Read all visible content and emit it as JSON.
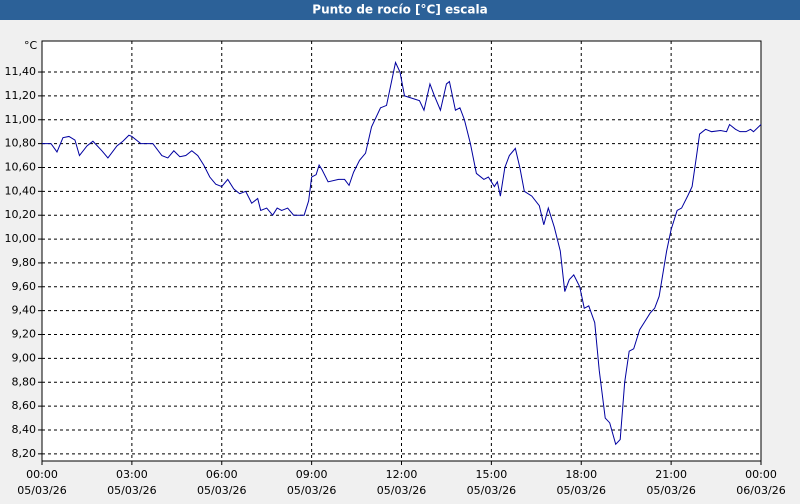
{
  "chart_data": {
    "type": "line",
    "title": "Punto de rocío [°C] escala",
    "y_unit": "°C",
    "xlim": [
      0,
      24
    ],
    "xticks": [
      {
        "value": 0,
        "label": "00:00"
      },
      {
        "value": 3,
        "label": "03:00"
      },
      {
        "value": 6,
        "label": "06:00"
      },
      {
        "value": 9,
        "label": "09:00"
      },
      {
        "value": 12,
        "label": "12:00"
      },
      {
        "value": 15,
        "label": "15:00"
      },
      {
        "value": 18,
        "label": "18:00"
      },
      {
        "value": 21,
        "label": "21:00"
      },
      {
        "value": 24,
        "label": "00:00"
      }
    ],
    "xtick_dates": [
      "05/03/26",
      "05/03/26",
      "05/03/26",
      "05/03/26",
      "05/03/26",
      "05/03/26",
      "05/03/26",
      "05/03/26",
      "06/03/26"
    ],
    "ylim": [
      8.14,
      11.66
    ],
    "yticks": [
      {
        "value": 8.2,
        "label": "8,20"
      },
      {
        "value": 8.4,
        "label": "8,40"
      },
      {
        "value": 8.6,
        "label": "8,60"
      },
      {
        "value": 8.8,
        "label": "8,80"
      },
      {
        "value": 9.0,
        "label": "9,00"
      },
      {
        "value": 9.2,
        "label": "9,20"
      },
      {
        "value": 9.4,
        "label": "9,40"
      },
      {
        "value": 9.6,
        "label": "9,60"
      },
      {
        "value": 9.8,
        "label": "9,80"
      },
      {
        "value": 10.0,
        "label": "10,00"
      },
      {
        "value": 10.2,
        "label": "10,20"
      },
      {
        "value": 10.4,
        "label": "10,40"
      },
      {
        "value": 10.6,
        "label": "10,60"
      },
      {
        "value": 10.8,
        "label": "10,80"
      },
      {
        "value": 11.0,
        "label": "11,00"
      },
      {
        "value": 11.2,
        "label": "11,20"
      },
      {
        "value": 11.4,
        "label": "11,40"
      }
    ],
    "grid": true,
    "series": [
      {
        "color": "#0000a0",
        "x": [
          0,
          0.3,
          0.5,
          0.7,
          0.9,
          1.1,
          1.25,
          1.5,
          1.7,
          2.0,
          2.2,
          2.5,
          2.7,
          2.9,
          3.0,
          3.3,
          3.7,
          4.0,
          4.2,
          4.4,
          4.6,
          4.8,
          5.0,
          5.2,
          5.4,
          5.6,
          5.8,
          6.0,
          6.2,
          6.4,
          6.6,
          6.8,
          7.0,
          7.2,
          7.3,
          7.5,
          7.7,
          7.85,
          8.0,
          8.2,
          8.4,
          8.6,
          8.75,
          8.9,
          9.0,
          9.15,
          9.25,
          9.35,
          9.55,
          9.9,
          10.1,
          10.25,
          10.4,
          10.6,
          10.8,
          11.0,
          11.3,
          11.5,
          11.8,
          11.95,
          12.1,
          12.35,
          12.6,
          12.75,
          12.95,
          13.1,
          13.3,
          13.5,
          13.6,
          13.8,
          13.95,
          14.1,
          14.3,
          14.5,
          14.75,
          14.9,
          15.1,
          15.2,
          15.3,
          15.45,
          15.6,
          15.8,
          15.95,
          16.1,
          16.35,
          16.6,
          16.75,
          16.9,
          17.1,
          17.3,
          17.45,
          17.6,
          17.75,
          17.95,
          18.1,
          18.25,
          18.45,
          18.6,
          18.8,
          18.95,
          19.15,
          19.3,
          19.45,
          19.6,
          19.75,
          19.95,
          20.1,
          20.3,
          20.45,
          20.6,
          20.85,
          21.0,
          21.2,
          21.35,
          21.55,
          21.7,
          21.85,
          21.95,
          22.15,
          22.35,
          22.65,
          22.85,
          22.95,
          23.15,
          23.3,
          23.5,
          23.65,
          23.75,
          24.0
        ],
        "values": [
          10.8,
          10.8,
          10.73,
          10.85,
          10.86,
          10.83,
          10.7,
          10.78,
          10.82,
          10.74,
          10.68,
          10.78,
          10.82,
          10.87,
          10.86,
          10.8,
          10.8,
          10.7,
          10.68,
          10.74,
          10.69,
          10.7,
          10.74,
          10.7,
          10.62,
          10.52,
          10.46,
          10.44,
          10.5,
          10.42,
          10.38,
          10.4,
          10.3,
          10.34,
          10.24,
          10.26,
          10.2,
          10.26,
          10.24,
          10.26,
          10.2,
          10.2,
          10.2,
          10.32,
          10.52,
          10.54,
          10.62,
          10.58,
          10.48,
          10.5,
          10.5,
          10.45,
          10.56,
          10.66,
          10.72,
          10.94,
          11.1,
          11.12,
          11.48,
          11.4,
          11.2,
          11.18,
          11.16,
          11.08,
          11.3,
          11.2,
          11.08,
          11.3,
          11.32,
          11.08,
          11.1,
          11.0,
          10.8,
          10.55,
          10.5,
          10.52,
          10.44,
          10.48,
          10.36,
          10.6,
          10.7,
          10.76,
          10.6,
          10.4,
          10.36,
          10.28,
          10.12,
          10.26,
          10.1,
          9.9,
          9.56,
          9.66,
          9.7,
          9.6,
          9.42,
          9.44,
          9.3,
          8.9,
          8.5,
          8.46,
          8.28,
          8.32,
          8.8,
          9.06,
          9.08,
          9.24,
          9.3,
          9.38,
          9.42,
          9.52,
          9.9,
          10.08,
          10.24,
          10.26,
          10.36,
          10.44,
          10.7,
          10.88,
          10.92,
          10.9,
          10.91,
          10.9,
          10.96,
          10.92,
          10.9,
          10.9,
          10.92,
          10.9,
          10.96
        ]
      }
    ]
  }
}
